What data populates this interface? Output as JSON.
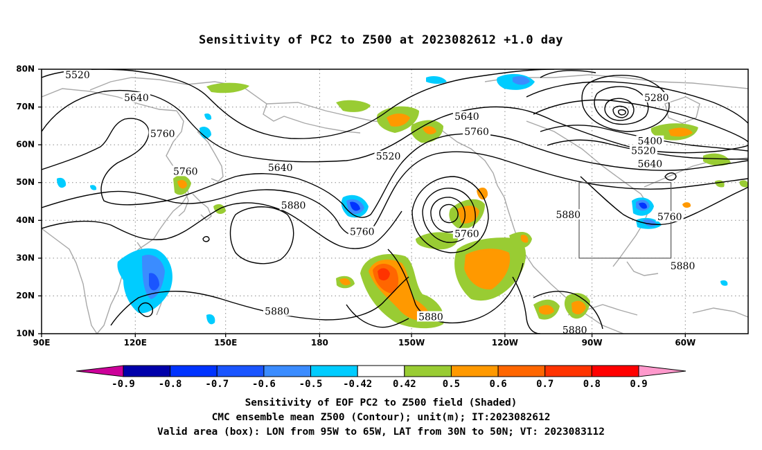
{
  "title": "Sensitivity of PC2 to Z500 at 2023082612 +1.0 day",
  "axes": {
    "lat_labels": [
      "80N",
      "70N",
      "60N",
      "50N",
      "40N",
      "30N",
      "20N",
      "10N"
    ],
    "lon_labels": [
      "90E",
      "120E",
      "150E",
      "180",
      "150W",
      "120W",
      "90W",
      "60W"
    ]
  },
  "contour_labels": [
    {
      "text": "5520",
      "lon": 101,
      "lat": 78.5
    },
    {
      "text": "5640",
      "lon": 119,
      "lat": 72.5
    },
    {
      "text": "5760",
      "lon": 127,
      "lat": 63.0
    },
    {
      "text": "5640",
      "lon": 163,
      "lat": 54.0
    },
    {
      "text": "5760",
      "lon": 134,
      "lat": 53.0
    },
    {
      "text": "5880",
      "lon": 167,
      "lat": 44.0
    },
    {
      "text": "5880",
      "lon": 162,
      "lat": 16.0
    },
    {
      "text": "5520",
      "lon": -164,
      "lat": 57.0
    },
    {
      "text": "5640",
      "lon": -140,
      "lat": 67.5
    },
    {
      "text": "5760",
      "lon": -137,
      "lat": 63.5
    },
    {
      "text": "5760",
      "lon": -172,
      "lat": 37.0
    },
    {
      "text": "5760",
      "lon": -140,
      "lat": 36.5
    },
    {
      "text": "5880",
      "lon": -109,
      "lat": 41.5
    },
    {
      "text": "5280",
      "lon": -82,
      "lat": 72.5
    },
    {
      "text": "5400",
      "lon": -84,
      "lat": 61.0
    },
    {
      "text": "5520",
      "lon": -86,
      "lat": 58.5
    },
    {
      "text": "5640",
      "lon": -84,
      "lat": 55.0
    },
    {
      "text": "5760",
      "lon": -78,
      "lat": 41.0
    },
    {
      "text": "5880",
      "lon": -74,
      "lat": 28.0
    },
    {
      "text": "5880",
      "lon": -151,
      "lat": 14.5
    },
    {
      "text": "5880",
      "lon": -107,
      "lat": 11.0
    }
  ],
  "colorbar": {
    "labels": [
      "-0.9",
      "-0.8",
      "-0.7",
      "-0.6",
      "-0.5",
      "-0.42",
      "0.42",
      "0.5",
      "0.6",
      "0.7",
      "0.8",
      "0.9"
    ],
    "colors": [
      "#0000aa",
      "#0033ff",
      "#1a55ff",
      "#3b8cff",
      "#00ccff",
      "#ffffff",
      "#99cc33",
      "#ff9900",
      "#ff6600",
      "#ff3300",
      "#ff0000"
    ],
    "below_color": "#cc0099",
    "above_color": "#ff99cc"
  },
  "valid_box": {
    "lon_min": -95,
    "lon_max": -65,
    "lat_min": 30,
    "lat_max": 50
  },
  "captions": {
    "line1": "Sensitivity of EOF PC2 to Z500 field (Shaded)",
    "line2": "CMC ensemble mean Z500 (Contour); unit(m); IT:2023082612",
    "line3": "Valid area (box): LON from 95W to 65W, LAT from 30N to 50N; VT: 2023083112"
  }
}
